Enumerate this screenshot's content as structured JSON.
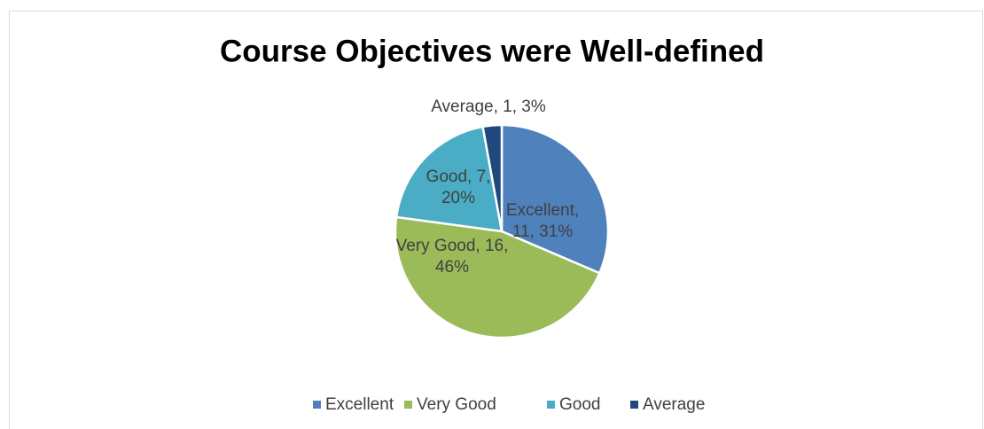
{
  "chart_data": {
    "type": "pie",
    "title": "Course Objectives were Well-defined",
    "categories": [
      "Excellent",
      "Very Good",
      "Good",
      "Average"
    ],
    "values": [
      11,
      16,
      7,
      1
    ],
    "value_labels": [
      "Excellent, 11, 31%",
      "Very Good, 16, 46%",
      "Good, 7, 20%",
      "Average, 1, 3%"
    ],
    "colors": [
      "#4f81bd",
      "#9bbb59",
      "#4bacc6",
      "#1f497d"
    ],
    "legend": "bottom"
  }
}
